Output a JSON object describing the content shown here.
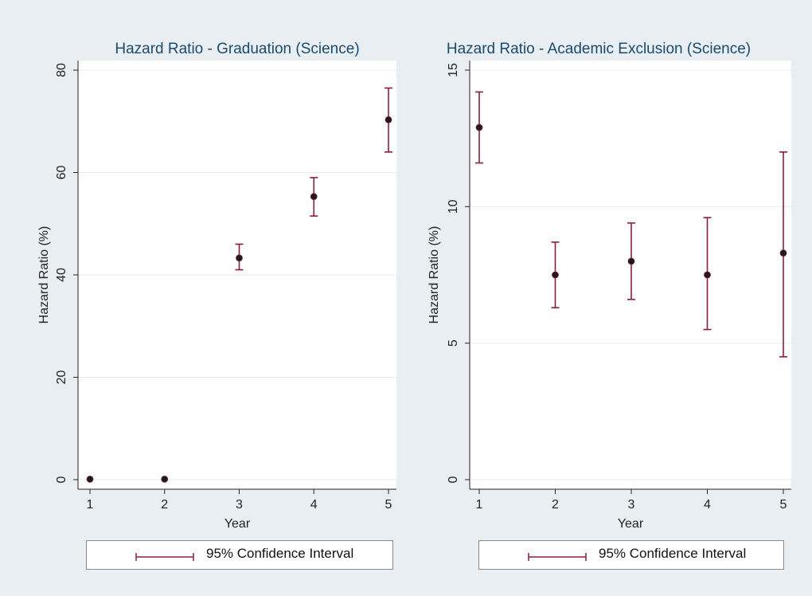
{
  "colors": {
    "outer_background": "#e9eef2",
    "plot_background": "#ffffff",
    "ci_color": "#8b1f3a",
    "point_color": "#1c1c1c",
    "grid_color": "#e6ecef",
    "axis_color": "#222222"
  },
  "chart_data": [
    {
      "type": "scatter",
      "title": "Hazard Ratio - Graduation (Science)",
      "xlabel": "Year",
      "ylabel": "Hazard Ratio (%)",
      "x": [
        1,
        2,
        3,
        4,
        5
      ],
      "xticks": [
        "1",
        "2",
        "3",
        "4",
        "5"
      ],
      "xlim": [
        1,
        5
      ],
      "ylim": [
        0,
        80
      ],
      "yticks": [
        "0",
        "20",
        "40",
        "60",
        "80"
      ],
      "grid": true,
      "series": [
        {
          "values": [
            0.1,
            0.1,
            43.3,
            55.3,
            70.3
          ],
          "ci_lower": [
            null,
            null,
            41.0,
            51.5,
            64.0
          ],
          "ci_upper": [
            null,
            null,
            46.0,
            59.0,
            76.5
          ]
        }
      ],
      "legend": {
        "label": "95% Confidence Interval",
        "placement": "bottom"
      }
    },
    {
      "type": "scatter",
      "title": "Hazard Ratio - Academic Exclusion (Science)",
      "xlabel": "Year",
      "ylabel": "Hazard Ratio (%)",
      "x": [
        1,
        2,
        3,
        4,
        5
      ],
      "xticks": [
        "1",
        "2",
        "3",
        "4",
        "5"
      ],
      "xlim": [
        1,
        5
      ],
      "ylim": [
        0,
        15
      ],
      "yticks": [
        "0",
        "5",
        "10",
        "15"
      ],
      "grid": true,
      "series": [
        {
          "values": [
            12.9,
            7.5,
            8.0,
            7.5,
            8.3
          ],
          "ci_lower": [
            11.6,
            6.3,
            6.6,
            5.5,
            4.5
          ],
          "ci_upper": [
            14.2,
            8.7,
            9.4,
            9.6,
            12.0
          ]
        }
      ],
      "legend": {
        "label": "95% Confidence Interval",
        "placement": "bottom"
      }
    }
  ]
}
